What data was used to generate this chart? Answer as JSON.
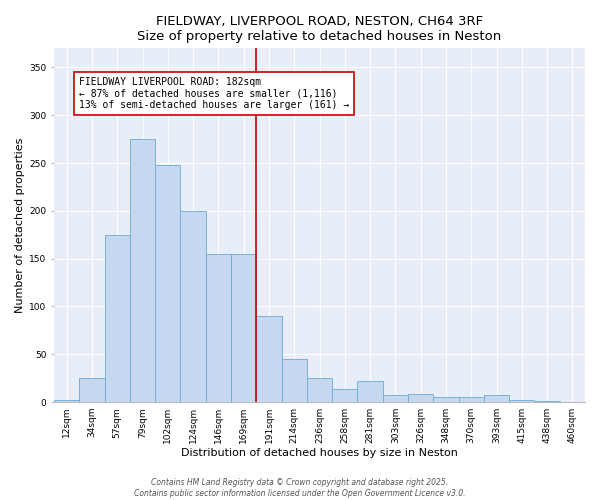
{
  "title": "FIELDWAY, LIVERPOOL ROAD, NESTON, CH64 3RF",
  "subtitle": "Size of property relative to detached houses in Neston",
  "xlabel": "Distribution of detached houses by size in Neston",
  "ylabel": "Number of detached properties",
  "categories": [
    "12sqm",
    "34sqm",
    "57sqm",
    "79sqm",
    "102sqm",
    "124sqm",
    "146sqm",
    "169sqm",
    "191sqm",
    "214sqm",
    "236sqm",
    "258sqm",
    "281sqm",
    "303sqm",
    "326sqm",
    "348sqm",
    "370sqm",
    "393sqm",
    "415sqm",
    "438sqm",
    "460sqm"
  ],
  "values": [
    2,
    25,
    175,
    275,
    248,
    200,
    155,
    155,
    90,
    45,
    25,
    14,
    22,
    7,
    8,
    5,
    5,
    7,
    2,
    1,
    0
  ],
  "bar_color": "#c5d8f0",
  "bar_edgecolor": "#6aaad4",
  "vline_color": "#cc0000",
  "annotation_title": "FIELDWAY LIVERPOOL ROAD: 182sqm",
  "annotation_line1": "← 87% of detached houses are smaller (1,116)",
  "annotation_line2": "13% of semi-detached houses are larger (161) →",
  "annotation_box_color": "#cc0000",
  "ylim": [
    0,
    370
  ],
  "yticks": [
    0,
    50,
    100,
    150,
    200,
    250,
    300,
    350
  ],
  "background_color": "#e8eef8",
  "footer_line1": "Contains HM Land Registry data © Crown copyright and database right 2025.",
  "footer_line2": "Contains public sector information licensed under the Open Government Licence v3.0.",
  "title_fontsize": 9.5,
  "axis_label_fontsize": 8,
  "tick_fontsize": 6.5,
  "annotation_fontsize": 7,
  "footer_fontsize": 5.5
}
